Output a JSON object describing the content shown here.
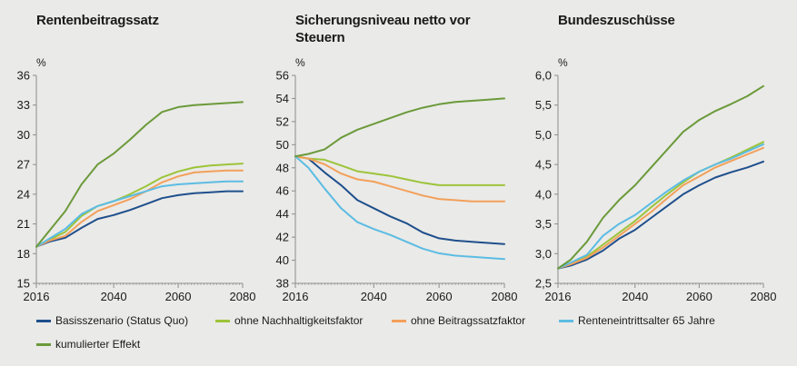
{
  "panels": [
    {
      "title": "Rentenbeitragssatz",
      "unit": "%"
    },
    {
      "title": "Sicherungsniveau netto vor Steuern",
      "unit": "%"
    },
    {
      "title": "Bundeszuschüsse",
      "unit": "%"
    }
  ],
  "legend": [
    {
      "label": "Basisszenario (Status Quo)",
      "color": "#1f4f8c"
    },
    {
      "label": "ohne Nachhaltigkeitsfaktor",
      "color": "#9cc43a"
    },
    {
      "label": "ohne Beitragssatzfaktor",
      "color": "#f3a05a"
    },
    {
      "label": "Renteneintrittsalter 65 Jahre",
      "color": "#5cbce3"
    },
    {
      "label": "kumulierter Effekt",
      "color": "#6b9a3a"
    }
  ],
  "chart_data": [
    {
      "type": "line",
      "title": "Rentenbeitragssatz",
      "ylabel": "%",
      "x": [
        2016,
        2020,
        2025,
        2030,
        2035,
        2040,
        2045,
        2050,
        2055,
        2060,
        2065,
        2070,
        2075,
        2080
      ],
      "xticks": [
        "2016",
        "2040",
        "2060",
        "2080"
      ],
      "ylim": [
        15,
        36
      ],
      "yticks": [
        "15",
        "18",
        "21",
        "24",
        "27",
        "30",
        "33",
        "36"
      ],
      "series": [
        {
          "name": "Basisszenario (Status Quo)",
          "values": [
            18.7,
            19.2,
            19.6,
            20.6,
            21.5,
            21.9,
            22.4,
            23.0,
            23.6,
            23.9,
            24.1,
            24.2,
            24.3,
            24.3
          ]
        },
        {
          "name": "ohne Nachhaltigkeitsfaktor",
          "values": [
            18.7,
            19.4,
            20.2,
            21.8,
            22.8,
            23.3,
            24.0,
            24.8,
            25.7,
            26.3,
            26.7,
            26.9,
            27.0,
            27.1
          ]
        },
        {
          "name": "ohne Beitragssatzfaktor",
          "values": [
            18.7,
            19.3,
            19.8,
            21.2,
            22.3,
            22.9,
            23.5,
            24.3,
            25.2,
            25.8,
            26.2,
            26.3,
            26.4,
            26.4
          ]
        },
        {
          "name": "Renteneintrittsalter 65 Jahre",
          "values": [
            18.7,
            19.5,
            20.5,
            22.0,
            22.8,
            23.3,
            23.8,
            24.3,
            24.8,
            25.0,
            25.1,
            25.2,
            25.3,
            25.3
          ]
        },
        {
          "name": "kumulierter Effekt",
          "values": [
            18.7,
            20.3,
            22.3,
            25.0,
            27.0,
            28.1,
            29.5,
            31.0,
            32.3,
            32.8,
            33.0,
            33.1,
            33.2,
            33.3
          ]
        }
      ]
    },
    {
      "type": "line",
      "title": "Sicherungsniveau netto vor Steuern",
      "ylabel": "%",
      "x": [
        2016,
        2020,
        2025,
        2030,
        2035,
        2040,
        2045,
        2050,
        2055,
        2060,
        2065,
        2070,
        2075,
        2080
      ],
      "xticks": [
        "2016",
        "2040",
        "2060",
        "2080"
      ],
      "ylim": [
        38,
        56
      ],
      "yticks": [
        "38",
        "40",
        "42",
        "44",
        "46",
        "48",
        "50",
        "52",
        "54",
        "56"
      ],
      "series": [
        {
          "name": "Basisszenario (Status Quo)",
          "values": [
            49.0,
            48.8,
            47.6,
            46.5,
            45.2,
            44.5,
            43.8,
            43.2,
            42.4,
            41.9,
            41.7,
            41.6,
            41.5,
            41.4
          ]
        },
        {
          "name": "ohne Nachhaltigkeitsfaktor",
          "values": [
            49.0,
            48.8,
            48.7,
            48.2,
            47.7,
            47.5,
            47.3,
            47.0,
            46.7,
            46.5,
            46.5,
            46.5,
            46.5,
            46.5
          ]
        },
        {
          "name": "ohne Beitragssatzfaktor",
          "values": [
            49.0,
            48.8,
            48.3,
            47.5,
            47.0,
            46.8,
            46.4,
            46.0,
            45.6,
            45.3,
            45.2,
            45.1,
            45.1,
            45.1
          ]
        },
        {
          "name": "Renteneintrittsalter 65 Jahre",
          "values": [
            49.0,
            48.0,
            46.2,
            44.5,
            43.3,
            42.7,
            42.2,
            41.6,
            41.0,
            40.6,
            40.4,
            40.3,
            40.2,
            40.1
          ]
        },
        {
          "name": "kumulierter Effekt",
          "values": [
            49.0,
            49.2,
            49.6,
            50.6,
            51.3,
            51.8,
            52.3,
            52.8,
            53.2,
            53.5,
            53.7,
            53.8,
            53.9,
            54.0
          ]
        }
      ]
    },
    {
      "type": "line",
      "title": "Bundeszuschüsse",
      "ylabel": "%",
      "x": [
        2016,
        2020,
        2025,
        2030,
        2035,
        2040,
        2045,
        2050,
        2055,
        2060,
        2065,
        2070,
        2075,
        2080
      ],
      "xticks": [
        "2016",
        "2040",
        "2060",
        "2080"
      ],
      "ylim": [
        2.5,
        6.0
      ],
      "yticks": [
        "2,5",
        "3,0",
        "3,5",
        "4,0",
        "4,5",
        "5,0",
        "5,5",
        "6,0"
      ],
      "series": [
        {
          "name": "Basisszenario (Status Quo)",
          "values": [
            2.75,
            2.8,
            2.9,
            3.05,
            3.25,
            3.4,
            3.6,
            3.8,
            4.0,
            4.15,
            4.28,
            4.37,
            4.45,
            4.55
          ]
        },
        {
          "name": "ohne Nachhaltigkeitsfaktor",
          "values": [
            2.75,
            2.85,
            2.95,
            3.15,
            3.35,
            3.55,
            3.78,
            4.0,
            4.2,
            4.38,
            4.5,
            4.62,
            4.75,
            4.88
          ]
        },
        {
          "name": "ohne Beitragssatzfaktor",
          "values": [
            2.75,
            2.82,
            2.93,
            3.1,
            3.3,
            3.5,
            3.7,
            3.93,
            4.15,
            4.3,
            4.45,
            4.56,
            4.67,
            4.78
          ]
        },
        {
          "name": "Renteneintrittsalter 65 Jahre",
          "values": [
            2.75,
            2.85,
            2.98,
            3.3,
            3.5,
            3.65,
            3.85,
            4.05,
            4.23,
            4.38,
            4.5,
            4.6,
            4.72,
            4.84
          ]
        },
        {
          "name": "kumulierter Effekt",
          "values": [
            2.75,
            2.9,
            3.2,
            3.6,
            3.9,
            4.15,
            4.45,
            4.75,
            5.05,
            5.25,
            5.4,
            5.52,
            5.65,
            5.82
          ]
        }
      ]
    }
  ]
}
